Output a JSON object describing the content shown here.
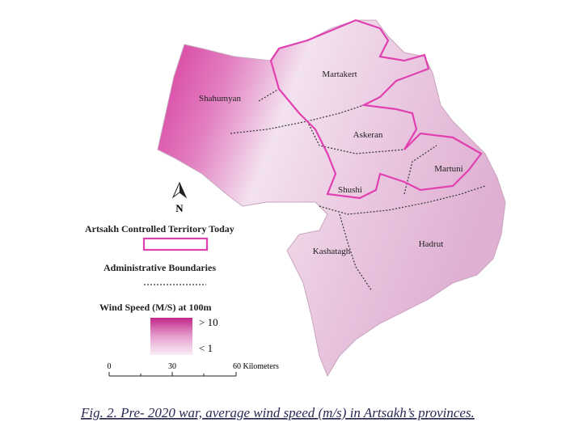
{
  "map": {
    "north_label": "N",
    "regions": [
      "Martakert",
      "Shahumyan",
      "Askeran",
      "Martuni",
      "Shushi",
      "Kashatagh",
      "Hadrut"
    ]
  },
  "legend": {
    "territory": "Artsakh Controlled Territory Today",
    "boundaries": "Administrative Boundaries",
    "wind_title": "Wind Speed (M/S) at 100m",
    "wind_high": "> 10",
    "wind_low": "< 1"
  },
  "scale_bar": {
    "labels": [
      "0",
      "30",
      "60 Kilometers"
    ]
  },
  "caption": "Fig. 2. Pre- 2020 war, average wind speed (m/s) in Artsakh’s provinces."
}
